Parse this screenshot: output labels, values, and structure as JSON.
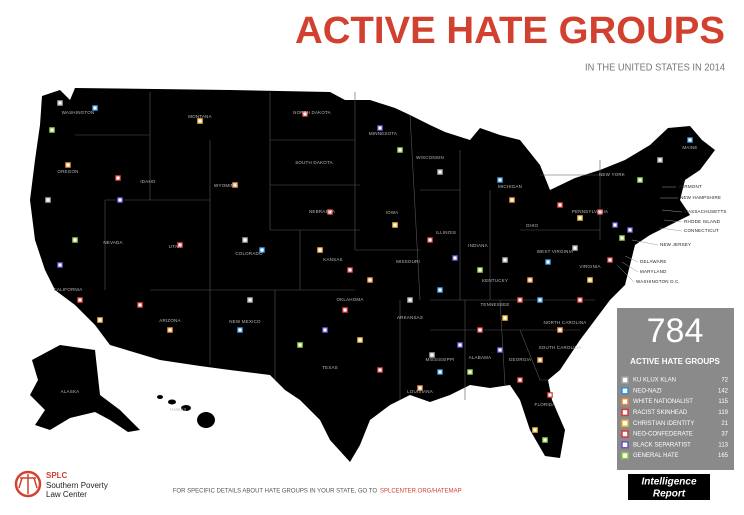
{
  "header": {
    "title": "ACTIVE HATE GROUPS",
    "subtitle": "IN THE UNITED STATES IN 2014"
  },
  "summary": {
    "total": "784",
    "label": "ACTIVE HATE GROUPS"
  },
  "legend": [
    {
      "label": "KU KLUX KLAN",
      "count": "72",
      "color": "#9aa3ad"
    },
    {
      "label": "NEO-NAZI",
      "count": "142",
      "color": "#2f8fd8"
    },
    {
      "label": "WHITE NATIONALIST",
      "count": "115",
      "color": "#e08a3a"
    },
    {
      "label": "RACIST SKINHEAD",
      "count": "119",
      "color": "#d43b3b"
    },
    {
      "label": "CHRISTIAN IDENTITY",
      "count": "21",
      "color": "#e8b23a"
    },
    {
      "label": "NEO-CONFEDERATE",
      "count": "37",
      "color": "#d43b3b"
    },
    {
      "label": "BLACK SEPARATIST",
      "count": "113",
      "color": "#6a4fc8"
    },
    {
      "label": "GENERAL HATE",
      "count": "165",
      "color": "#8cc63f"
    }
  ],
  "states": [
    "WASHINGTON",
    "OREGON",
    "IDAHO",
    "MONTANA",
    "NORTH DAKOTA",
    "MINNESOTA",
    "WISCONSIN",
    "MICHIGAN",
    "SOUTH DAKOTA",
    "WYOMING",
    "NEBRASKA",
    "IOWA",
    "ILLINOIS",
    "INDIANA",
    "OHIO",
    "PENNSYLVANIA",
    "NEW YORK",
    "MAINE",
    "NEVADA",
    "UTAH",
    "COLORADO",
    "KANSAS",
    "MISSOURI",
    "KENTUCKY",
    "WEST VIRGINIA",
    "VIRGINIA",
    "CALIFORNIA",
    "ARIZONA",
    "NEW MEXICO",
    "OKLAHOMA",
    "ARKANSAS",
    "TENNESSEE",
    "NORTH CAROLINA",
    "SOUTH CAROLINA",
    "GEORGIA",
    "ALABAMA",
    "MISSISSIPPI",
    "LOUISIANA",
    "TEXAS",
    "FLORIDA",
    "ALASKA",
    "HAWAII"
  ],
  "callouts": [
    "VERMONT",
    "NEW HAMPSHIRE",
    "MASSACHUSETTS",
    "RHODE ISLAND",
    "CONNECTICUT",
    "NEW JERSEY",
    "DELAWARE",
    "MARYLAND",
    "WASHINGTON D.C."
  ],
  "footer": {
    "note": "FOR SPECIFIC DETAILS ABOUT HATE GROUPS IN YOUR STATE, GO TO",
    "link": "SPLCENTER.ORG/HATEMAP"
  },
  "logo": {
    "mark": "SPLC",
    "lines": [
      "Southern Poverty",
      "Law Center"
    ]
  },
  "publication": {
    "lines": [
      "Intelligence",
      "Report"
    ]
  }
}
